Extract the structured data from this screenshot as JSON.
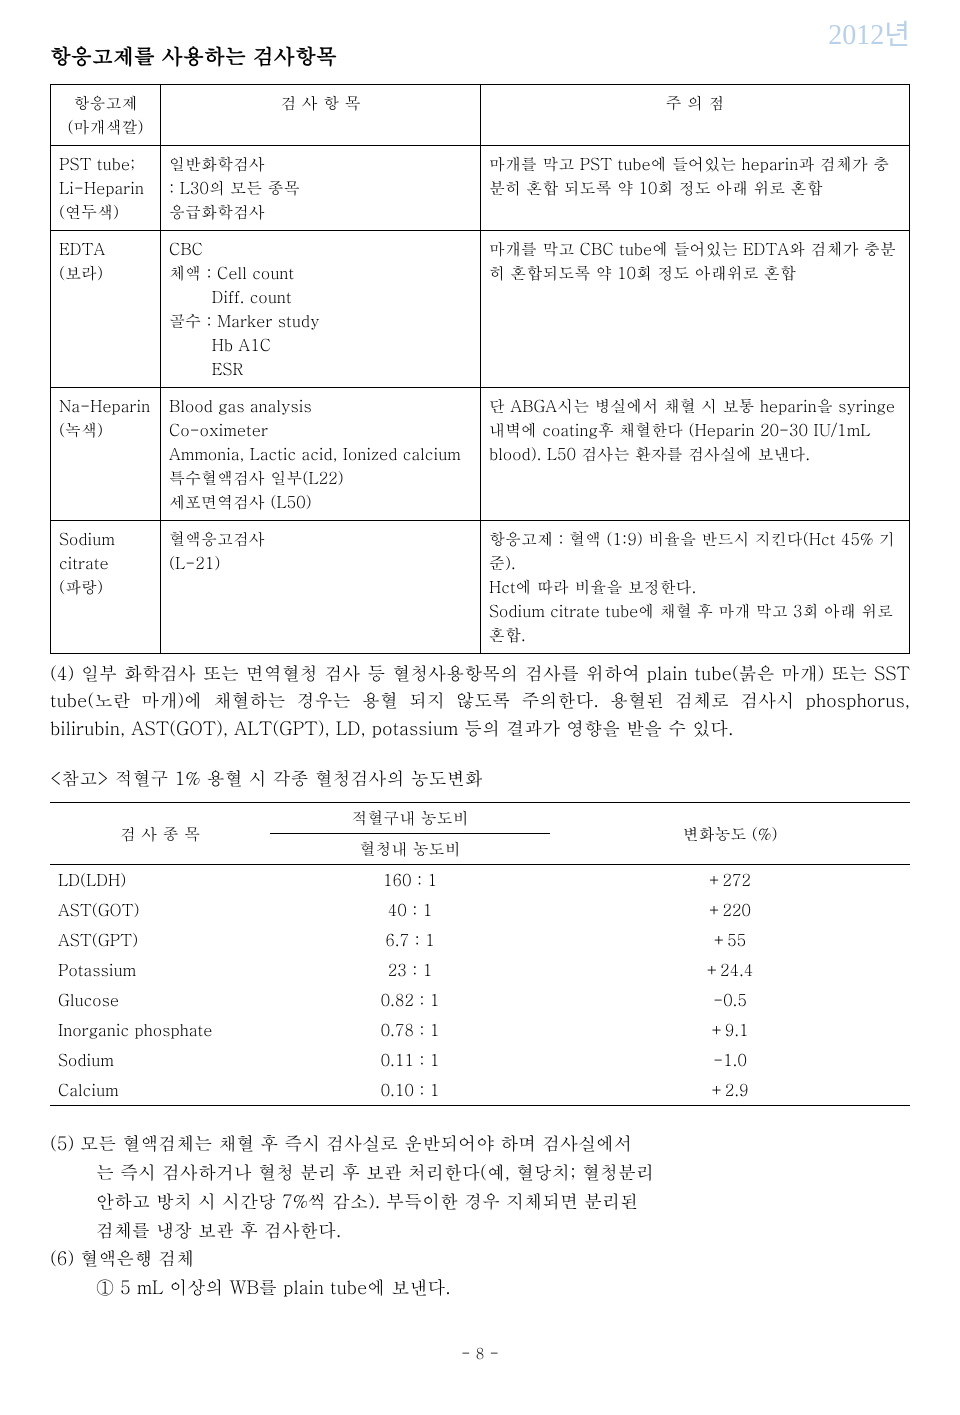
{
  "year_mark": "2012년",
  "section_title": "항응고제를 사용하는 검사항목",
  "main_table": {
    "headers": [
      "항응고제\n(마개색깔)",
      "검 사 항 목",
      "주 의 점"
    ],
    "rows": [
      {
        "c1": "PST tube;\nLi-Heparin\n(연두색)",
        "c2": "일반화학검사\n: L30의 모든 종목\n응급화학검사",
        "c3": "마개를 막고 PST tube에 들어있는 heparin과 검체가 충분히 혼합 되도록 약 10회 정도 아래 위로 혼합"
      },
      {
        "c1": "EDTA\n(보라)",
        "c2": "CBC\n체액 : Cell count\n        Diff. count\n골수 : Marker study\n        Hb A1C\n        ESR",
        "c3": "마개를 막고 CBC tube에 들어있는 EDTA와 검체가 충분히 혼합되도록 약 10회 정도 아래위로 혼합"
      },
      {
        "c1": "Na-Heparin\n(녹색)",
        "c2": "Blood gas analysis\nCo-oximeter\nAmmonia, Lactic acid, Ionized calcium\n특수혈액검사 일부(L22)\n세포면역검사 (L50)",
        "c3": "단 ABGA시는 병실에서 채혈 시 보통 heparin을 syringe 내벽에 coating후 채혈한다 (Heparin 20-30 IU/1mL blood). L50 검사는 환자를 검사실에 보낸다."
      },
      {
        "c1": "Sodium\ncitrate\n(파랑)",
        "c2": "혈액응고검사\n(L-21)",
        "c3": "항응고제 : 혈액 (1:9) 비율을 반드시 지킨다(Hct 45% 기준).\nHct에 따라 비율을 보정한다.\nSodium citrate tube에 채혈 후 마개 막고 3회 아래 위로 혼합."
      }
    ]
  },
  "para4": "(4) 일부 화학검사 또는 면역혈청 검사 등 혈청사용항목의 검사를 위하여 plain tube(붉은 마개)  또는 SST tube(노란 마개)에 채혈하는 경우는 용혈 되지 않도록 주의한다. 용혈된 검체로 검사시 phosphorus, bilirubin, AST(GOT), ALT(GPT), LD, potassium 등의 결과가 영향을 받을 수 있다.",
  "ref_title": "<참고> 적혈구 1% 용혈 시 각종 혈청검사의 농도변화",
  "ref_table": {
    "head_left": "검 사 종 목",
    "head_mid_top": "적혈구내 농도비",
    "head_mid_bot": "혈청내 농도비",
    "head_right": "변화농도 (%)",
    "rows": [
      {
        "name": "LD(LDH)",
        "ratio": "160 : 1",
        "change": "+272"
      },
      {
        "name": "AST(GOT)",
        "ratio": "40 : 1",
        "change": "+220"
      },
      {
        "name": "AST(GPT)",
        "ratio": "6.7 : 1",
        "change": "+55"
      },
      {
        "name": "Potassium",
        "ratio": "23 : 1",
        "change": "+24.4"
      },
      {
        "name": "Glucose",
        "ratio": "0.82 : 1",
        "change": "-0.5"
      },
      {
        "name": "Inorganic phosphate",
        "ratio": "0.78 : 1",
        "change": "+9.1"
      },
      {
        "name": "Sodium",
        "ratio": "0.11 : 1",
        "change": "-1.0"
      },
      {
        "name": "Calcium",
        "ratio": "0.10 : 1",
        "change": "+2.9"
      }
    ]
  },
  "note5_l1": "(5) 모든 혈액검체는 채혈 후 즉시 검사실로 운반되어야 하며 검사실에서",
  "note5_l2": "는 즉시 검사하거나 혈청 분리 후 보관 처리한다(예, 혈당치; 혈청분리",
  "note5_l3": "안하고 방치 시 시간당 7%씩 감소). 부득이한 경우 지체되면 분리된",
  "note5_l4": "검체를 냉장 보관 후 검사한다.",
  "note6": "(6) 혈액은행 검체",
  "note6_s1": "① 5 mL 이상의 WB를 plain tube에 보낸다.",
  "page_num": "- 8 -"
}
